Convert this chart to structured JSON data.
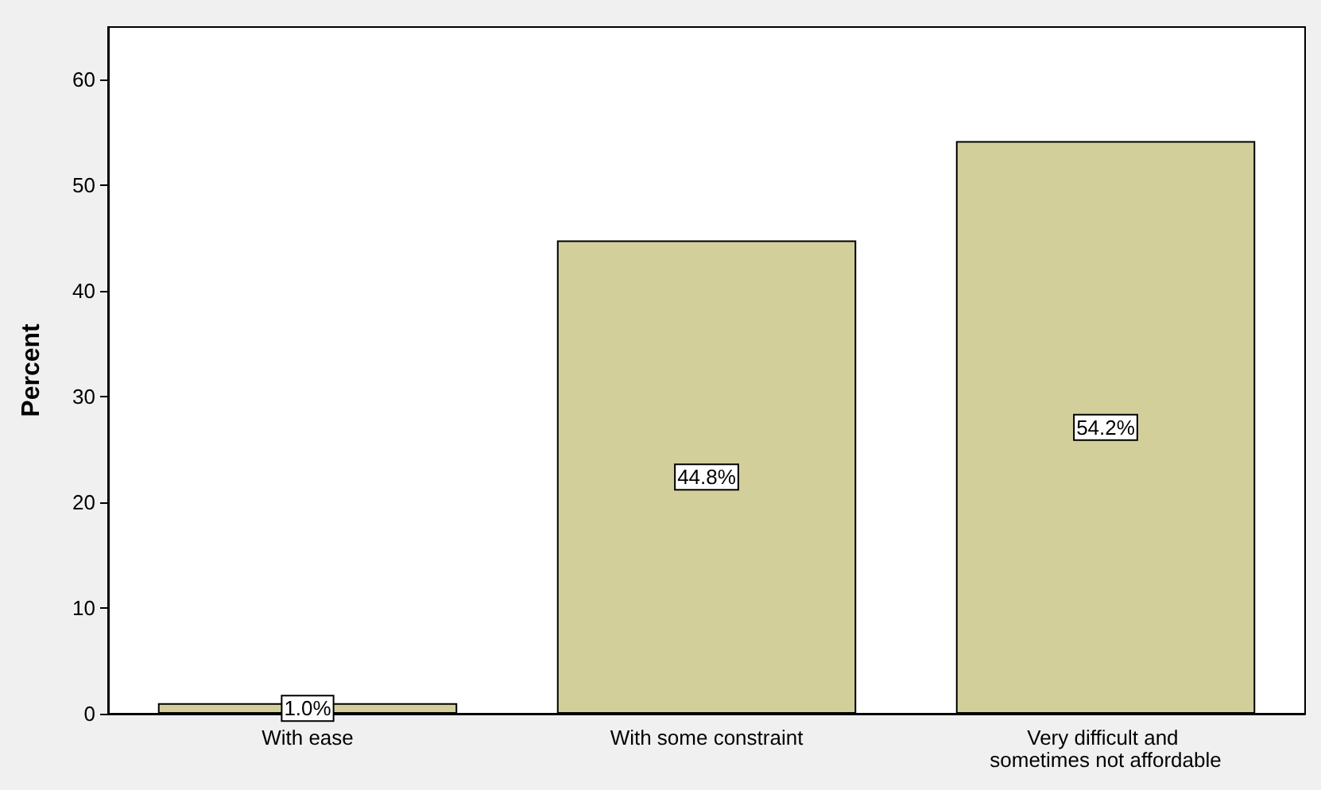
{
  "chart_data": {
    "type": "bar",
    "ylabel": "Percent",
    "categories": [
      "With ease",
      "With some constraint",
      "Very difficult and sometimes not affordable"
    ],
    "values": [
      1.0,
      44.8,
      54.2
    ],
    "value_labels": [
      "1.0%",
      "44.8%",
      "54.2%"
    ],
    "color": "#d3cf9a",
    "ylim": [
      0,
      65
    ],
    "yticks": [
      0,
      10,
      20,
      30,
      40,
      50,
      60
    ],
    "grid": false
  }
}
